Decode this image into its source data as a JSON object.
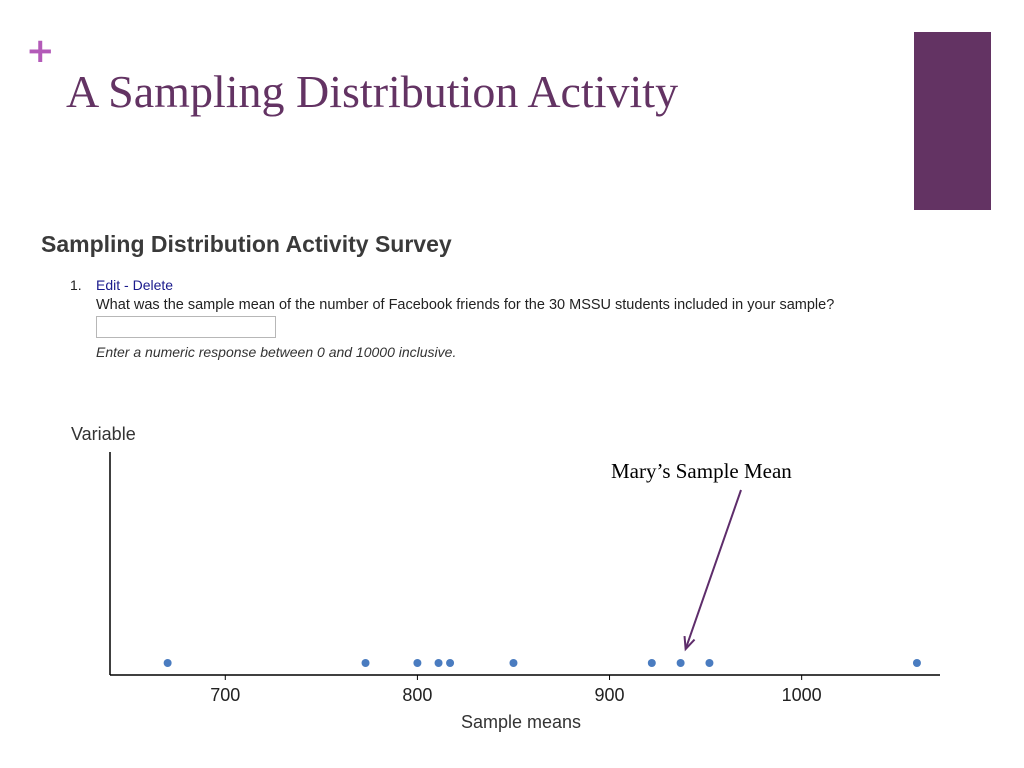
{
  "slide": {
    "marker": "+",
    "title": "A Sampling Distribution Activity",
    "colors": {
      "accent_purple": "#633363",
      "plus_pink": "#b35ab8",
      "arrow": "#5e2d6b",
      "point_blue": "#4a7cc0"
    }
  },
  "survey": {
    "title": "Sampling Distribution Activity Survey",
    "question_number": "1.",
    "edit_label": "Edit",
    "separator": " - ",
    "delete_label": "Delete",
    "question_text": "What was the sample mean of the number of Facebook friends for the 30 MSSU students included in your sample?",
    "answer_value": "",
    "hint": "Enter a numeric response between 0 and 10000 inclusive."
  },
  "annotation": {
    "label": "Mary’s Sample Mean",
    "points_to_x": 937
  },
  "chart_data": {
    "type": "scatter",
    "title": "",
    "ylabel": "Variable",
    "xlabel": "Sample means",
    "xlim": [
      640,
      1072
    ],
    "xticks": [
      700,
      800,
      900,
      1000
    ],
    "tick_labels": [
      "700",
      "800",
      "900",
      "1000"
    ],
    "grid": false,
    "values": [
      670,
      773,
      800,
      811,
      817,
      850,
      922,
      937,
      952,
      1060
    ]
  }
}
